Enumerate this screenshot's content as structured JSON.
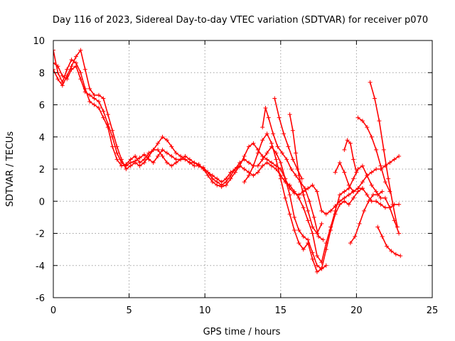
{
  "chart_data": {
    "type": "scatter",
    "title": "Day 116 of 2023, Sidereal Day-to-day VTEC variation (SDTVAR) for receiver p070",
    "xlabel": "GPS time / hours",
    "ylabel": "SDTVAR / TECUs",
    "xlim": [
      0,
      25
    ],
    "ylim": [
      -6,
      10
    ],
    "xticks": [
      "0",
      "5",
      "10",
      "15",
      "20",
      "25"
    ],
    "yticks": [
      "-6",
      "-4",
      "-2",
      "0",
      "2",
      "4",
      "6",
      "8",
      "10"
    ],
    "grid": true,
    "marker": "+",
    "color": "#ff0000",
    "series": [
      {
        "x": [
          0.0,
          0.3,
          0.6,
          0.9,
          1.2,
          1.5,
          1.8,
          2.1,
          2.4,
          2.7,
          3.0,
          3.3,
          3.6,
          3.9,
          4.2,
          4.5,
          4.8,
          5.1,
          5.4,
          5.7,
          6.0,
          6.3,
          6.6,
          6.9,
          7.2,
          7.5,
          7.8,
          8.1,
          8.4,
          8.7,
          9.0,
          9.3,
          9.6,
          9.9,
          10.2,
          10.5,
          10.8,
          11.1,
          11.4,
          11.7,
          12.0,
          12.3,
          12.6,
          12.9,
          13.2,
          13.5,
          13.8,
          14.1,
          14.4,
          14.7,
          15.0,
          15.3,
          15.6,
          15.9,
          16.2,
          16.5,
          16.8,
          17.1,
          17.4,
          17.7,
          18.0,
          18.3,
          18.6,
          18.9,
          19.2,
          19.5,
          19.8,
          20.1,
          20.4,
          20.7,
          21.0,
          21.3,
          21.6,
          21.9,
          22.2,
          22.5,
          22.8
        ],
        "y": [
          9.4,
          8.0,
          7.4,
          8.2,
          8.8,
          8.6,
          8.0,
          7.0,
          6.2,
          6.0,
          5.8,
          5.2,
          4.6,
          3.4,
          2.6,
          2.2,
          2.3,
          2.6,
          2.8,
          2.4,
          2.6,
          3.0,
          3.2,
          3.6,
          4.0,
          3.8,
          3.4,
          3.0,
          2.8,
          2.6,
          2.4,
          2.4,
          2.3,
          2.0,
          1.8,
          1.4,
          1.2,
          1.0,
          1.2,
          1.6,
          2.0,
          2.4,
          2.6,
          2.4,
          2.2,
          2.2,
          2.6,
          3.0,
          3.4,
          3.0,
          2.4,
          1.4,
          0.8,
          0.5,
          0.4,
          0.6,
          0.8,
          1.0,
          0.6,
          -0.6,
          -0.8,
          -0.6,
          -0.3,
          0.0,
          0.2,
          0.4,
          0.6,
          0.8,
          1.2,
          1.6,
          1.8,
          2.0,
          2.0,
          2.2,
          2.4,
          2.6,
          2.8
        ]
      },
      {
        "x": [
          0.0,
          0.3,
          0.6,
          0.9,
          1.2,
          1.5,
          1.8,
          2.1,
          2.4,
          2.7,
          3.0,
          3.3,
          3.6,
          3.9,
          4.2,
          4.5,
          4.8,
          5.1,
          5.4,
          5.7,
          6.0,
          6.3,
          6.6,
          6.9,
          7.2,
          7.5,
          7.8,
          8.1,
          8.4,
          8.7,
          9.0,
          9.3,
          9.6,
          9.9,
          10.2,
          10.5,
          10.8,
          11.1,
          11.4,
          11.7,
          12.0,
          12.3,
          12.6,
          12.9,
          13.2,
          13.5,
          13.8,
          14.1,
          14.4,
          14.7,
          15.0,
          15.3,
          15.6,
          15.9,
          16.2,
          16.5,
          16.8,
          17.1,
          17.4,
          17.7,
          18.0,
          18.3,
          18.6,
          18.9,
          19.2,
          19.5,
          19.8,
          20.1,
          20.4,
          20.7,
          21.0,
          21.3,
          21.6,
          21.9,
          22.2,
          22.5,
          22.8
        ],
        "y": [
          8.6,
          8.4,
          7.8,
          7.6,
          8.2,
          8.4,
          7.6,
          6.8,
          6.6,
          6.4,
          6.2,
          5.6,
          4.8,
          4.0,
          3.0,
          2.4,
          2.2,
          2.4,
          2.5,
          2.7,
          2.9,
          2.6,
          2.4,
          2.8,
          3.2,
          3.0,
          2.8,
          2.6,
          2.6,
          2.8,
          2.6,
          2.4,
          2.2,
          2.0,
          1.6,
          1.2,
          1.0,
          0.9,
          1.0,
          1.4,
          1.8,
          2.2,
          2.8,
          3.4,
          3.6,
          3.2,
          2.8,
          2.6,
          2.4,
          2.2,
          2.0,
          1.4,
          0.4,
          -1.0,
          -1.8,
          -2.2,
          -2.4,
          -3.2,
          -4.0,
          -4.2,
          -3.0,
          -1.8,
          -0.8,
          -0.2,
          0.0,
          -0.2,
          0.2,
          0.6,
          0.8,
          0.4,
          0.0,
          0.0,
          -0.2,
          -0.4,
          -0.4,
          -0.2,
          -0.2
        ]
      },
      {
        "x": [
          0.0,
          0.3,
          0.6,
          0.9,
          1.2,
          1.5,
          1.8,
          2.1,
          2.4,
          2.7,
          3.0,
          3.3,
          3.6,
          3.9,
          4.2,
          4.5,
          4.8,
          5.1,
          5.4,
          5.7,
          6.0,
          6.3,
          6.6,
          6.9,
          7.2,
          7.5,
          7.8,
          8.1,
          8.4,
          8.7,
          9.0,
          9.3,
          9.6,
          9.9,
          10.2,
          10.5,
          10.8,
          11.1,
          11.4,
          11.7,
          12.0,
          12.3,
          12.6,
          12.9,
          13.2,
          13.5,
          13.8,
          14.1,
          14.4,
          14.7,
          15.0,
          15.3,
          15.6,
          15.9,
          16.2,
          16.5,
          16.8,
          17.1,
          17.4,
          17.7,
          18.0,
          18.3,
          18.6,
          18.9,
          19.2,
          19.5,
          19.8,
          20.1,
          20.4,
          20.7,
          21.0,
          21.3,
          21.6,
          21.9,
          22.2,
          22.5,
          22.8
        ],
        "y": [
          8.2,
          7.6,
          7.2,
          7.8,
          8.4,
          9.0,
          9.4,
          8.2,
          7.0,
          6.6,
          6.6,
          6.4,
          5.4,
          4.4,
          3.4,
          2.6,
          2.0,
          2.2,
          2.4,
          2.2,
          2.4,
          2.8,
          3.2,
          3.2,
          2.8,
          2.4,
          2.2,
          2.4,
          2.6,
          2.6,
          2.4,
          2.2,
          2.2,
          2.1,
          1.8,
          1.6,
          1.4,
          1.2,
          1.4,
          1.8,
          2.0,
          2.2,
          2.0,
          1.8,
          1.6,
          1.8,
          2.2,
          2.4,
          2.2,
          2.0,
          1.6,
          1.2,
          1.0,
          0.6,
          0.2,
          -0.4,
          -1.2,
          -2.0,
          -3.4,
          -3.8,
          -2.6,
          -1.6,
          -0.6,
          0.4,
          0.6,
          0.8,
          1.4,
          2.0,
          2.2,
          1.6,
          1.0,
          0.6,
          0.2,
          0.2,
          -0.4,
          -1.2,
          -2.0
        ]
      },
      {
        "x": [
          12.6,
          12.9,
          13.2,
          13.5,
          13.8,
          14.1,
          14.4,
          14.7,
          15.0,
          15.3,
          15.6,
          15.9,
          16.2,
          16.5,
          16.8,
          17.1,
          17.4,
          17.7,
          18.0
        ],
        "y": [
          1.2,
          1.6,
          2.2,
          3.0,
          3.8,
          4.2,
          3.6,
          2.6,
          1.4,
          0.2,
          -0.8,
          -1.8,
          -2.6,
          -3.0,
          -2.6,
          -3.6,
          -4.4,
          -4.2,
          -4.0
        ]
      },
      {
        "x": [
          13.8,
          14.0,
          14.2,
          14.5,
          14.8,
          15.1,
          15.4,
          15.7,
          16.0,
          16.3,
          16.6,
          16.9,
          17.2,
          17.5,
          17.8
        ],
        "y": [
          4.6,
          5.8,
          5.2,
          4.2,
          3.4,
          3.0,
          2.6,
          2.0,
          1.6,
          1.2,
          0.8,
          0.0,
          -1.0,
          -2.2,
          -2.4
        ]
      },
      {
        "x": [
          14.6,
          14.9,
          15.2,
          15.5,
          15.8,
          16.1,
          16.4
        ],
        "y": [
          6.4,
          5.2,
          4.2,
          3.4,
          2.6,
          2.0,
          1.4
        ]
      },
      {
        "x": [
          15.6,
          15.8,
          16.0,
          16.2,
          16.5,
          16.8,
          17.1,
          17.4,
          17.7
        ],
        "y": [
          5.4,
          4.4,
          3.0,
          1.6,
          0.4,
          -0.6,
          -1.6,
          -2.0,
          -1.4
        ]
      },
      {
        "x": [
          18.6,
          18.9,
          19.2,
          19.5,
          19.8,
          20.1,
          20.4
        ],
        "y": [
          1.8,
          2.4,
          1.8,
          1.0,
          0.6,
          0.8,
          0.8
        ]
      },
      {
        "x": [
          19.2,
          19.4,
          19.6,
          19.8,
          20.0
        ],
        "y": [
          3.2,
          3.8,
          3.6,
          2.6,
          1.8
        ]
      },
      {
        "x": [
          19.6,
          19.9,
          20.2,
          20.5,
          20.8,
          21.1,
          21.4,
          21.7
        ],
        "y": [
          -2.6,
          -2.2,
          -1.4,
          -0.6,
          0.0,
          0.4,
          0.4,
          0.6
        ]
      },
      {
        "x": [
          20.1,
          20.4,
          20.7,
          21.0,
          21.3,
          21.6,
          21.9,
          22.2
        ],
        "y": [
          5.2,
          5.0,
          4.6,
          4.0,
          3.2,
          2.2,
          1.2,
          0.6
        ]
      },
      {
        "x": [
          20.9,
          21.2,
          21.5,
          21.8,
          22.1,
          22.4,
          22.7
        ],
        "y": [
          7.4,
          6.4,
          5.0,
          3.2,
          1.4,
          -0.2,
          -1.6
        ]
      },
      {
        "x": [
          21.4,
          21.7,
          22.0,
          22.3,
          22.6,
          22.9
        ],
        "y": [
          -1.6,
          -2.2,
          -2.8,
          -3.1,
          -3.3,
          -3.4
        ]
      }
    ]
  }
}
